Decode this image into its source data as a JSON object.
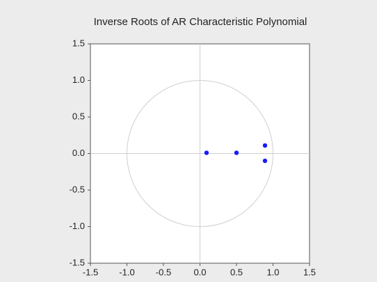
{
  "chart_data": {
    "type": "scatter",
    "title": "Inverse Roots of AR Characteristic Polynomial",
    "x": [
      0.09,
      0.5,
      0.89,
      0.89
    ],
    "values": [
      0.01,
      0.01,
      0.11,
      -0.1
    ],
    "color": "#1a1aff",
    "xlim": [
      -1.5,
      1.5
    ],
    "ylim": [
      -1.5,
      1.5
    ],
    "xticks": [
      -1.5,
      {
        "value": -1.0,
        "label": "-1.0"
      },
      -0.5,
      {
        "value": 0.0,
        "label": "0.0"
      },
      0.5,
      {
        "value": 1.0,
        "label": "1.0"
      },
      1.5
    ],
    "yticks": [
      1.5,
      {
        "value": 1.0,
        "label": "1.0"
      },
      0.5,
      {
        "value": 0.0,
        "label": "0.0"
      },
      -0.5,
      {
        "value": -1.0,
        "label": "-1.0"
      },
      -1.5
    ],
    "unit_circle": true,
    "zero_lines": true
  }
}
